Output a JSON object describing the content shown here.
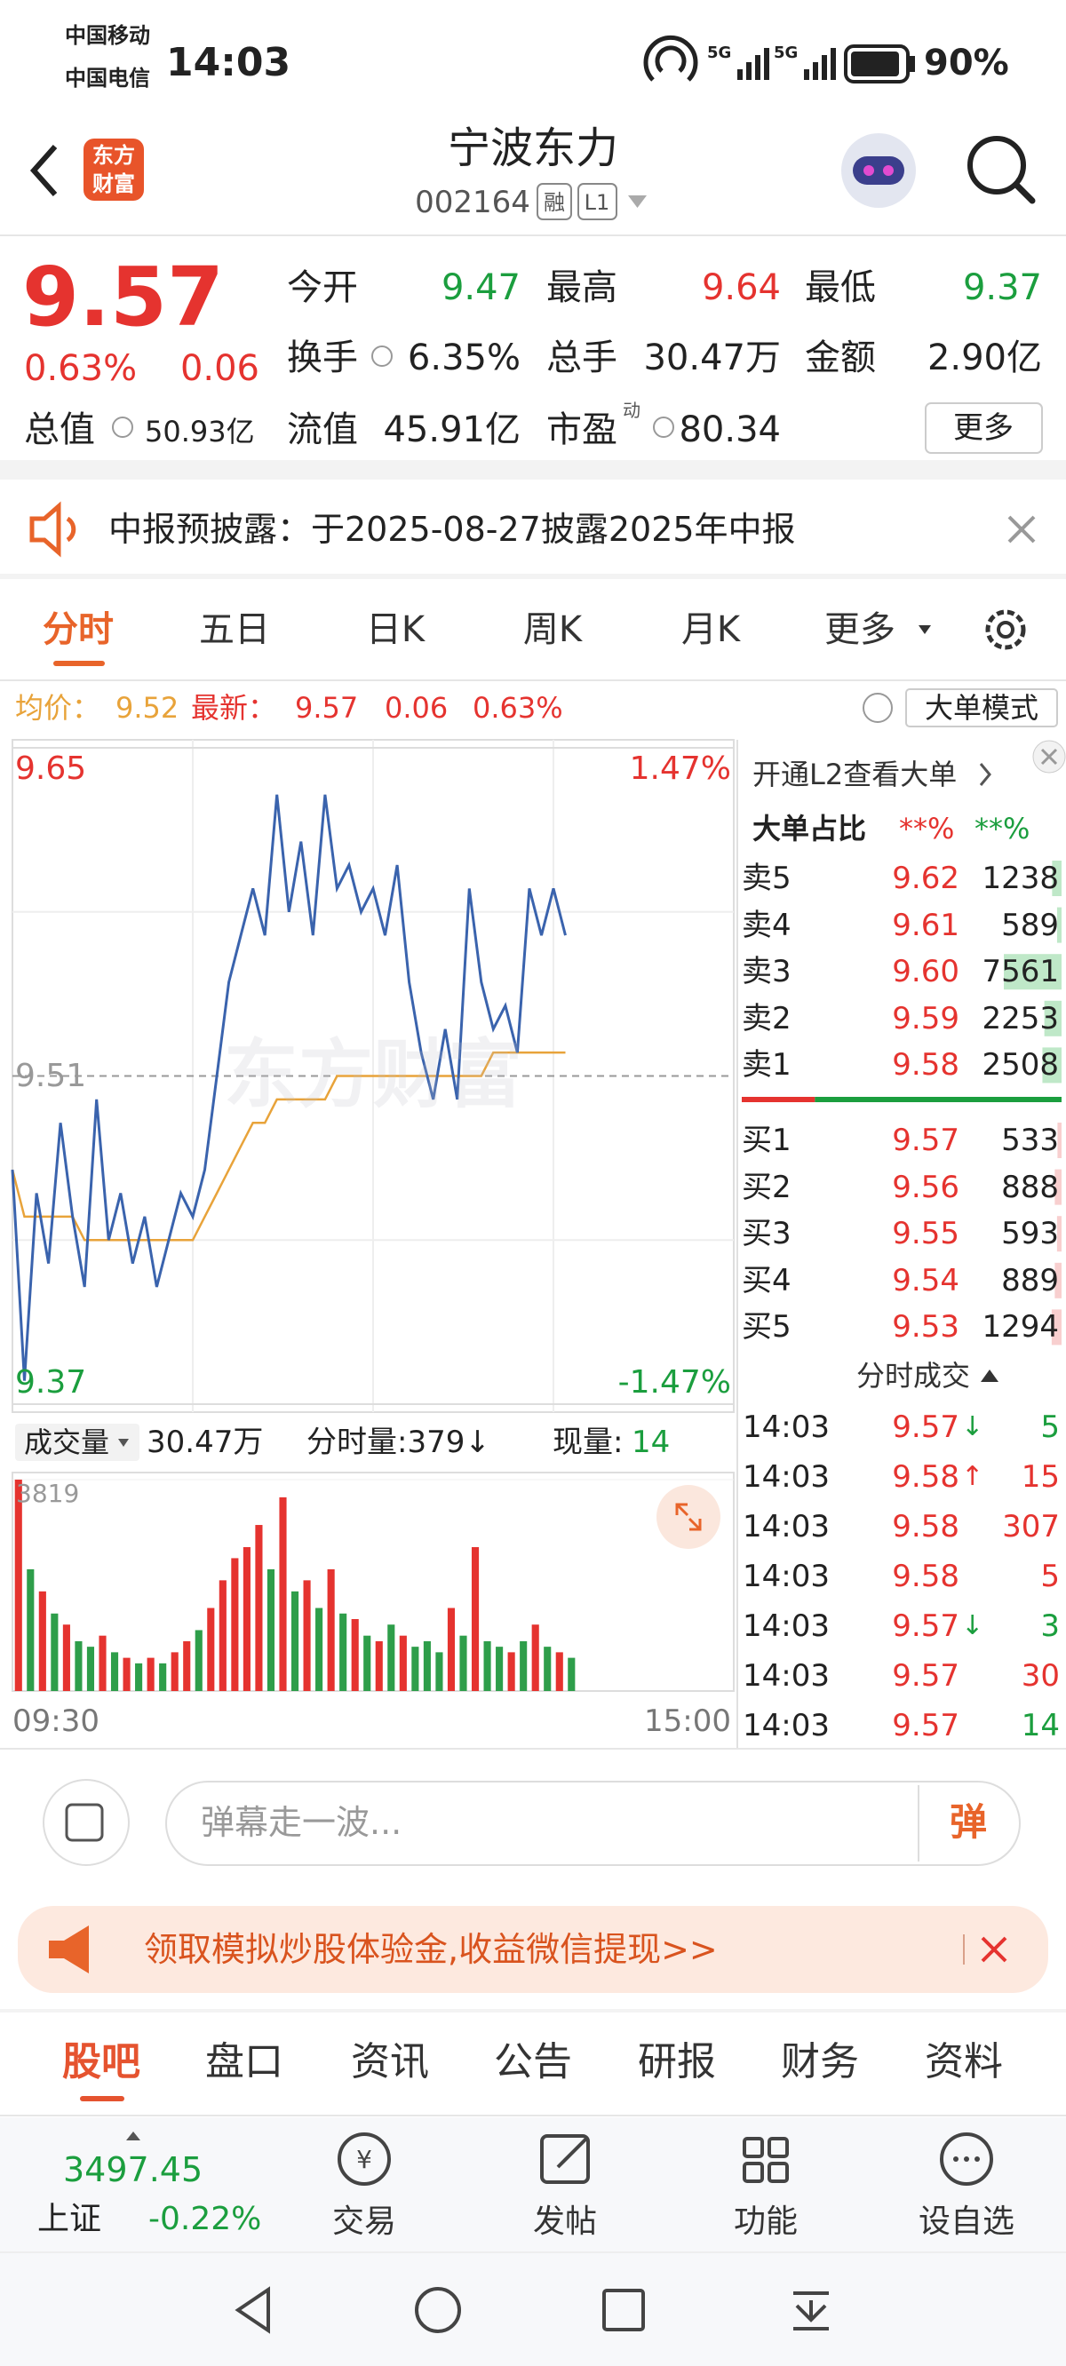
{
  "status_bar": {
    "carrier1": "中国移动",
    "carrier2": "中国电信",
    "time": "14:03",
    "network1": "5G",
    "network2": "5G",
    "battery": "90%"
  },
  "header": {
    "logo": [
      "东方",
      "财富"
    ],
    "title": "宁波东力",
    "code": "002164",
    "badges": [
      "融",
      "L1"
    ]
  },
  "quote": {
    "price": "9.57",
    "change_pct": "0.63%",
    "change": "0.06",
    "stats": [
      {
        "label": "今开",
        "value": "9.47",
        "color": "#1b9e3e"
      },
      {
        "label": "最高",
        "value": "9.64",
        "color": "#e5332f"
      },
      {
        "label": "最低",
        "value": "9.37",
        "color": "#1b9e3e"
      },
      {
        "label": "换手",
        "value": "6.35%",
        "color": "#222222"
      },
      {
        "label": "总手",
        "value": "30.47万",
        "color": "#222222"
      },
      {
        "label": "金额",
        "value": "2.90亿",
        "color": "#222222"
      },
      {
        "label": "流值",
        "value": "45.91亿",
        "color": "#222222"
      },
      {
        "label": "市盈",
        "sup": "动",
        "value": "80.34",
        "color": "#222222"
      }
    ],
    "total_cap": {
      "label": "总值",
      "value": "50.93亿"
    },
    "more": "更多"
  },
  "notice": "中报预披露：于2025-08-27披露2025年中报",
  "tabs": [
    "分时",
    "五日",
    "日K",
    "周K",
    "月K",
    "更多"
  ],
  "info_line": {
    "avg_label": "均价：",
    "avg": "9.52",
    "latest_label": "最新：",
    "latest": "9.57",
    "change": "0.06",
    "change_pct": "0.63%",
    "mode": "大单模式"
  },
  "intraday": {
    "ylim": [
      9.37,
      9.65
    ],
    "yticks": [
      9.37,
      9.51,
      9.65
    ],
    "pct_labels": [
      "1.47%",
      "-1.47%"
    ],
    "watermark": "东方财富",
    "line_color": "#3a63ad",
    "avg_color": "#e8a33a",
    "price": [
      9.47,
      9.38,
      9.46,
      9.43,
      9.49,
      9.45,
      9.42,
      9.5,
      9.44,
      9.46,
      9.43,
      9.45,
      9.42,
      9.44,
      9.46,
      9.45,
      9.47,
      9.51,
      9.55,
      9.57,
      9.59,
      9.57,
      9.63,
      9.58,
      9.61,
      9.57,
      9.63,
      9.59,
      9.6,
      9.58,
      9.59,
      9.57,
      9.6,
      9.55,
      9.52,
      9.5,
      9.53,
      9.5,
      9.59,
      9.55,
      9.53,
      9.54,
      9.52,
      9.59,
      9.57,
      9.59,
      9.57
    ],
    "avg": [
      9.47,
      9.45,
      9.45,
      9.45,
      9.45,
      9.45,
      9.44,
      9.44,
      9.44,
      9.44,
      9.44,
      9.44,
      9.44,
      9.44,
      9.44,
      9.44,
      9.45,
      9.46,
      9.47,
      9.48,
      9.49,
      9.49,
      9.5,
      9.5,
      9.5,
      9.5,
      9.5,
      9.51,
      9.51,
      9.51,
      9.51,
      9.51,
      9.51,
      9.51,
      9.51,
      9.51,
      9.51,
      9.51,
      9.51,
      9.51,
      9.52,
      9.52,
      9.52,
      9.52,
      9.52,
      9.52,
      9.52
    ],
    "volume": [
      3819,
      2200,
      1800,
      1400,
      1200,
      900,
      800,
      1000,
      700,
      600,
      500,
      600,
      500,
      700,
      900,
      1100,
      1500,
      2000,
      2400,
      2600,
      3000,
      2200,
      3500,
      1800,
      2000,
      1500,
      2200,
      1400,
      1300,
      1000,
      900,
      1200,
      1000,
      800,
      900,
      700,
      1500,
      1000,
      2600,
      900,
      800,
      700,
      900,
      1200,
      800,
      700,
      600
    ],
    "volume_ylim": [
      0,
      3819
    ],
    "volume_ticks": [
      3819
    ],
    "x_labels": [
      "09:30",
      "15:00"
    ]
  },
  "volume_header": {
    "label": "成交量",
    "total": "30.47万",
    "tick_volume": "分时量:379↓",
    "current_label": "现量:",
    "current": "14"
  },
  "order_book": {
    "l2": "开通L2查看大单",
    "ratio_label": "大单占比",
    "ratio_buy": "**%",
    "ratio_sell": "**%",
    "sell": [
      {
        "label": "卖5",
        "price": "9.62",
        "volume": 1238
      },
      {
        "label": "卖4",
        "price": "9.61",
        "volume": 589
      },
      {
        "label": "卖3",
        "price": "9.60",
        "volume": 7561
      },
      {
        "label": "卖2",
        "price": "9.59",
        "volume": 2253
      },
      {
        "label": "卖1",
        "price": "9.58",
        "volume": 2508
      }
    ],
    "buy": [
      {
        "label": "买1",
        "price": "9.57",
        "volume": 533
      },
      {
        "label": "买2",
        "price": "9.56",
        "volume": 888
      },
      {
        "label": "买3",
        "price": "9.55",
        "volume": 593
      },
      {
        "label": "买4",
        "price": "9.54",
        "volume": 889
      },
      {
        "label": "买5",
        "price": "9.53",
        "volume": 1294
      }
    ]
  },
  "trades": {
    "title": "分时成交",
    "rows": [
      {
        "time": "14:03",
        "price": "9.57",
        "arrow": "↓",
        "volume": 5,
        "color": "#1b9e3e"
      },
      {
        "time": "14:03",
        "price": "9.58",
        "arrow": "↑",
        "volume": 15,
        "color": "#e5332f"
      },
      {
        "time": "14:03",
        "price": "9.58",
        "volume": 307,
        "color": "#e5332f"
      },
      {
        "time": "14:03",
        "price": "9.58",
        "volume": 5,
        "color": "#e5332f"
      },
      {
        "time": "14:03",
        "price": "9.57",
        "arrow": "↓",
        "volume": 3,
        "color": "#1b9e3e"
      },
      {
        "time": "14:03",
        "price": "9.57",
        "volume": 30,
        "color": "#e5332f"
      },
      {
        "time": "14:03",
        "price": "9.57",
        "volume": 14,
        "color": "#1b9e3e"
      }
    ]
  },
  "comment_placeholder": "弹幕走一波...",
  "comment_button": "弹",
  "ad": "领取模拟炒股体验金,收益微信提现>>",
  "bottom_tabs": [
    "股吧",
    "盘口",
    "资讯",
    "公告",
    "研报",
    "财务",
    "资料"
  ],
  "index": {
    "value": "3497.45",
    "name": "上证",
    "change": "-0.22%"
  },
  "nav": [
    "交易",
    "发帖",
    "功能",
    "设自选"
  ]
}
